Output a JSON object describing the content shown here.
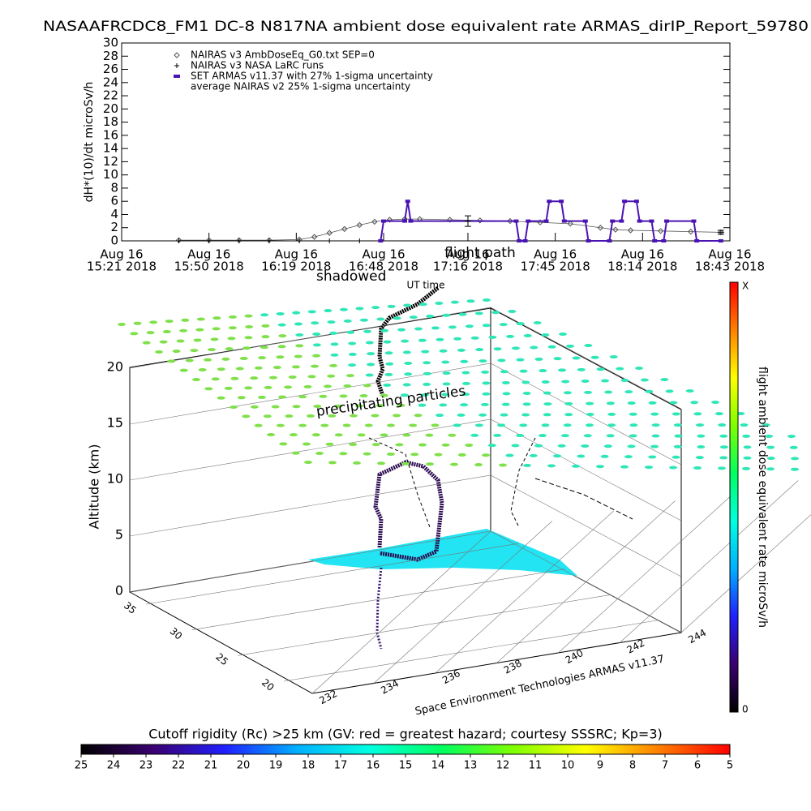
{
  "chart_data": [
    {
      "type": "line",
      "title": "NASAAFRCDC8_FM1 DC-8   N817NA ambient dose equivalent rate ARMAS_dirIP_Report_59780",
      "ylabel": "dH*(10)/dt microSv/h",
      "xlabel": "UT time",
      "ylim": [
        0,
        30
      ],
      "yticks": [
        0,
        2,
        4,
        6,
        8,
        10,
        12,
        14,
        16,
        18,
        20,
        22,
        24,
        26,
        28,
        30
      ],
      "xlim": [
        "2018-08-16T15:21",
        "2018-08-16T18:43"
      ],
      "xticks": [
        {
          "value": "2018-08-16T15:21",
          "label": [
            "Aug 16",
            "15:21 2018"
          ]
        },
        {
          "value": "2018-08-16T15:50",
          "label": [
            "Aug 16",
            "15:50 2018"
          ]
        },
        {
          "value": "2018-08-16T16:19",
          "label": [
            "Aug 16",
            "16:19 2018"
          ]
        },
        {
          "value": "2018-08-16T16:48",
          "label": [
            "Aug 16",
            "16:48 2018"
          ]
        },
        {
          "value": "2018-08-16T17:16",
          "label": [
            "Aug 16",
            "17:16 2018"
          ]
        },
        {
          "value": "2018-08-16T17:45",
          "label": [
            "Aug 16",
            "17:45 2018"
          ]
        },
        {
          "value": "2018-08-16T18:14",
          "label": [
            "Aug 16",
            "18:14 2018"
          ]
        },
        {
          "value": "2018-08-16T18:43",
          "label": [
            "Aug 16",
            "18:43 2018"
          ]
        }
      ],
      "series": [
        {
          "name": "NAIRAS v3 AmbDoseEq_G0.txt SEP=0",
          "color": "#555555",
          "marker": "diamond",
          "x": [
            "2018-08-16T15:40",
            "2018-08-16T15:50",
            "2018-08-16T16:00",
            "2018-08-16T16:10",
            "2018-08-16T16:20",
            "2018-08-16T16:25",
            "2018-08-16T16:30",
            "2018-08-16T16:35",
            "2018-08-16T16:40",
            "2018-08-16T16:45",
            "2018-08-16T16:50",
            "2018-08-16T16:55",
            "2018-08-16T17:00",
            "2018-08-16T17:10",
            "2018-08-16T17:20",
            "2018-08-16T17:30",
            "2018-08-16T17:40",
            "2018-08-16T17:50",
            "2018-08-16T18:00",
            "2018-08-16T18:05",
            "2018-08-16T18:10",
            "2018-08-16T18:20",
            "2018-08-16T18:30",
            "2018-08-16T18:40"
          ],
          "values": [
            0.1,
            0.1,
            0.1,
            0.1,
            0.2,
            0.6,
            1.2,
            1.8,
            2.4,
            2.9,
            3.2,
            3.3,
            3.3,
            3.2,
            3.1,
            3.0,
            2.8,
            2.6,
            2.0,
            1.7,
            1.6,
            1.5,
            1.4,
            1.3
          ]
        },
        {
          "name": "NAIRAS v3 NASA LaRC runs",
          "color": "#000000",
          "marker": "plus",
          "x": [
            "2018-08-16T15:40",
            "2018-08-16T15:50",
            "2018-08-16T16:00",
            "2018-08-16T16:10",
            "2018-08-16T16:20",
            "2018-08-16T16:30",
            "2018-08-16T16:40"
          ],
          "values": [
            0,
            0,
            0,
            0,
            0,
            0,
            0
          ]
        },
        {
          "name": "SET ARMAS v11.37 with 27% 1-sigma uncertainty",
          "color": "#4a14b4",
          "marker": "dash",
          "x": [
            "2018-08-16T16:47",
            "2018-08-16T16:48",
            "2018-08-16T16:55",
            "2018-08-16T16:56",
            "2018-08-16T16:57",
            "2018-08-16T17:32",
            "2018-08-16T17:33",
            "2018-08-16T17:35",
            "2018-08-16T17:36",
            "2018-08-16T17:42",
            "2018-08-16T17:43",
            "2018-08-16T17:47",
            "2018-08-16T17:48",
            "2018-08-16T17:55",
            "2018-08-16T17:56",
            "2018-08-16T18:03",
            "2018-08-16T18:04",
            "2018-08-16T18:07",
            "2018-08-16T18:08",
            "2018-08-16T18:12",
            "2018-08-16T18:13",
            "2018-08-16T18:17",
            "2018-08-16T18:18",
            "2018-08-16T18:21",
            "2018-08-16T18:22",
            "2018-08-16T18:31",
            "2018-08-16T18:32",
            "2018-08-16T18:40"
          ],
          "values": [
            0,
            3,
            3,
            6,
            3,
            3,
            0,
            0,
            3,
            3,
            6,
            6,
            3,
            3,
            0,
            0,
            3,
            3,
            6,
            6,
            3,
            3,
            0,
            0,
            3,
            3,
            0,
            0
          ]
        },
        {
          "name": "average NAIRAS v2 25% 1-sigma uncertainty",
          "color": "#000000",
          "marker": "none",
          "x": [
            "2018-08-16T17:16",
            "2018-08-16T18:40"
          ],
          "values": [
            3.0,
            1.3
          ],
          "errors": [
            0.8,
            0.3
          ]
        }
      ]
    },
    {
      "type": "surface3d",
      "zlabel": "Altitude (km)",
      "zlim": [
        0,
        20
      ],
      "zticks": [
        0,
        5,
        10,
        15,
        20
      ],
      "ylim": [
        20,
        35
      ],
      "yticks": [
        20,
        25,
        30,
        35
      ],
      "xlim": [
        232,
        244
      ],
      "xticks": [
        232,
        234,
        236,
        238,
        240,
        242,
        244
      ],
      "annotations": [
        "precipitating particles",
        "flight path",
        "shadowed"
      ],
      "credit": "Space Environment Technologies ARMAS v11.37",
      "colorbar": {
        "label": "flight ambient dose equivalent rate microSv/h",
        "ticks": [
          0,
          "X"
        ]
      },
      "cutoff_colorbar": {
        "title": "Cutoff rigidity (Rc) >25 km (GV: red = greatest hazard; courtesy SSSRC; Kp=3)",
        "lim": [
          25,
          5
        ],
        "ticks": [
          25,
          24,
          23,
          22,
          21,
          20,
          19,
          18,
          17,
          16,
          15,
          14,
          13,
          12,
          11,
          10,
          9,
          8,
          7,
          6,
          5
        ]
      },
      "colors": [
        "#000000",
        "#3a0070",
        "#2020ff",
        "#00b0ff",
        "#00ffe0",
        "#00ff60",
        "#80ff00",
        "#ffff00",
        "#ff8000",
        "#ff0000"
      ]
    }
  ]
}
